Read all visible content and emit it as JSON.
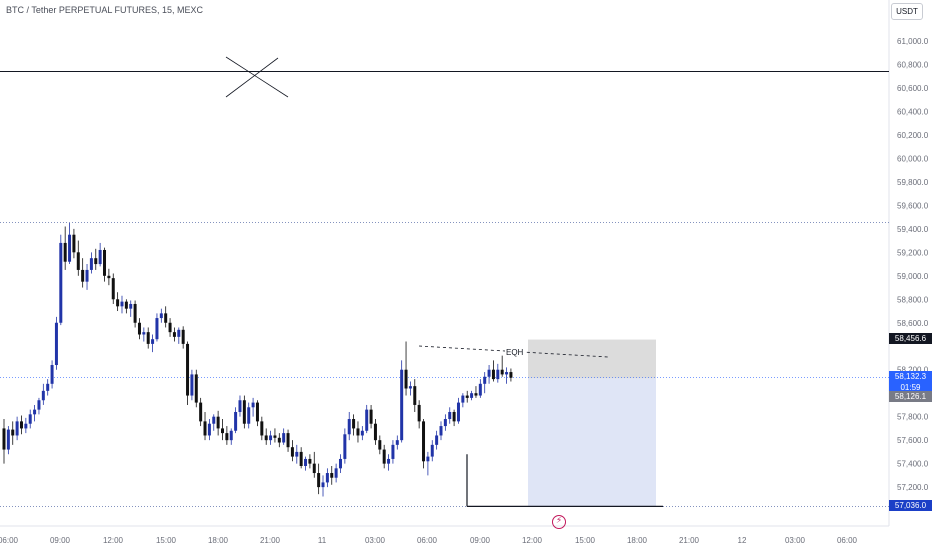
{
  "symbol": {
    "title": "BTC / Tether PERPETUAL FUTURES, 15, MEXC"
  },
  "currency": {
    "label": "USDT"
  },
  "y_axis": {
    "ticks": [
      "61,000.0",
      "60,800.0",
      "60,600.0",
      "60,400.0",
      "60,200.0",
      "60,000.0",
      "59,800.0",
      "59,600.0",
      "59,400.0",
      "59,200.0",
      "59,000.0",
      "58,800.0",
      "58,600.0",
      "58,200.0",
      "57,800.0",
      "57,600.0",
      "57,400.0",
      "57,200.0"
    ]
  },
  "x_axis": {
    "ticks": [
      "06:00",
      "09:00",
      "12:00",
      "15:00",
      "18:00",
      "21:00",
      "11",
      "03:00",
      "06:00",
      "09:00",
      "12:00",
      "15:00",
      "18:00",
      "21:00",
      "12",
      "03:00",
      "06:00"
    ]
  },
  "price_tags": {
    "target": "58,456.6",
    "current": "58,132.3",
    "countdown": "01:59",
    "entry": "58,126.1",
    "stop": "57,036.0"
  },
  "annotations": {
    "eqh": "EQH"
  },
  "levels": {
    "horizontal_top": 60740,
    "dotted_high": 59455,
    "bottom_line": 57036,
    "current": 58132.3
  },
  "position": {
    "entry": 58126.1,
    "target": 58456.6,
    "stop": 57036.0
  },
  "colors": {
    "up": "#2134a8",
    "down": "#111111",
    "target_zone": "#dcdcdc",
    "stop_zone": "#dfe5f6",
    "accent": "#2962ff",
    "flash": "#c2185b"
  },
  "icons": {
    "replay": "flash-icon"
  },
  "chart_data": {
    "type": "candlestick",
    "interval": "15",
    "ylim": [
      57036.0,
      61000.0
    ],
    "candles": [
      {
        "o": 57700,
        "h": 57780,
        "l": 57400,
        "c": 57520
      },
      {
        "o": 57520,
        "h": 57720,
        "l": 57480,
        "c": 57690
      },
      {
        "o": 57690,
        "h": 57760,
        "l": 57560,
        "c": 57640
      },
      {
        "o": 57640,
        "h": 57800,
        "l": 57600,
        "c": 57760
      },
      {
        "o": 57760,
        "h": 57810,
        "l": 57650,
        "c": 57700
      },
      {
        "o": 57700,
        "h": 57790,
        "l": 57660,
        "c": 57740
      },
      {
        "o": 57740,
        "h": 57860,
        "l": 57700,
        "c": 57820
      },
      {
        "o": 57820,
        "h": 57900,
        "l": 57760,
        "c": 57860
      },
      {
        "o": 57860,
        "h": 57960,
        "l": 57820,
        "c": 57940
      },
      {
        "o": 57940,
        "h": 58080,
        "l": 57900,
        "c": 58020
      },
      {
        "o": 58020,
        "h": 58120,
        "l": 57980,
        "c": 58080
      },
      {
        "o": 58080,
        "h": 58280,
        "l": 58040,
        "c": 58240
      },
      {
        "o": 58240,
        "h": 58650,
        "l": 58200,
        "c": 58600
      },
      {
        "o": 58600,
        "h": 59350,
        "l": 58580,
        "c": 59280
      },
      {
        "o": 59280,
        "h": 59420,
        "l": 59050,
        "c": 59120
      },
      {
        "o": 59120,
        "h": 59450,
        "l": 59100,
        "c": 59350
      },
      {
        "o": 59350,
        "h": 59400,
        "l": 59150,
        "c": 59200
      },
      {
        "o": 59200,
        "h": 59300,
        "l": 59000,
        "c": 59050
      },
      {
        "o": 59050,
        "h": 59150,
        "l": 58900,
        "c": 58950
      },
      {
        "o": 58950,
        "h": 59100,
        "l": 58880,
        "c": 59050
      },
      {
        "o": 59050,
        "h": 59200,
        "l": 59020,
        "c": 59150
      },
      {
        "o": 59150,
        "h": 59230,
        "l": 59050,
        "c": 59100
      },
      {
        "o": 59100,
        "h": 59280,
        "l": 59080,
        "c": 59220
      },
      {
        "o": 59220,
        "h": 59240,
        "l": 58950,
        "c": 59000
      },
      {
        "o": 59000,
        "h": 59060,
        "l": 58920,
        "c": 58980
      },
      {
        "o": 58980,
        "h": 59020,
        "l": 58760,
        "c": 58800
      },
      {
        "o": 58800,
        "h": 58860,
        "l": 58700,
        "c": 58740
      },
      {
        "o": 58740,
        "h": 58830,
        "l": 58680,
        "c": 58780
      },
      {
        "o": 58780,
        "h": 58800,
        "l": 58680,
        "c": 58720
      },
      {
        "o": 58720,
        "h": 58790,
        "l": 58650,
        "c": 58760
      },
      {
        "o": 58760,
        "h": 58790,
        "l": 58560,
        "c": 58600
      },
      {
        "o": 58600,
        "h": 58640,
        "l": 58460,
        "c": 58500
      },
      {
        "o": 58500,
        "h": 58560,
        "l": 58440,
        "c": 58520
      },
      {
        "o": 58520,
        "h": 58560,
        "l": 58380,
        "c": 58420
      },
      {
        "o": 58420,
        "h": 58500,
        "l": 58350,
        "c": 58460
      },
      {
        "o": 58460,
        "h": 58680,
        "l": 58440,
        "c": 58640
      },
      {
        "o": 58640,
        "h": 58720,
        "l": 58600,
        "c": 58680
      },
      {
        "o": 58680,
        "h": 58740,
        "l": 58560,
        "c": 58600
      },
      {
        "o": 58600,
        "h": 58640,
        "l": 58480,
        "c": 58520
      },
      {
        "o": 58520,
        "h": 58560,
        "l": 58440,
        "c": 58480
      },
      {
        "o": 58480,
        "h": 58560,
        "l": 58420,
        "c": 58540
      },
      {
        "o": 58540,
        "h": 58570,
        "l": 58380,
        "c": 58420
      },
      {
        "o": 58420,
        "h": 58440,
        "l": 57900,
        "c": 57980
      },
      {
        "o": 57980,
        "h": 58200,
        "l": 57940,
        "c": 58160
      },
      {
        "o": 58160,
        "h": 58200,
        "l": 57880,
        "c": 57920
      },
      {
        "o": 57920,
        "h": 57960,
        "l": 57720,
        "c": 57760
      },
      {
        "o": 57760,
        "h": 57840,
        "l": 57600,
        "c": 57640
      },
      {
        "o": 57640,
        "h": 57780,
        "l": 57600,
        "c": 57740
      },
      {
        "o": 57740,
        "h": 57820,
        "l": 57680,
        "c": 57800
      },
      {
        "o": 57800,
        "h": 57850,
        "l": 57640,
        "c": 57700
      },
      {
        "o": 57700,
        "h": 57780,
        "l": 57600,
        "c": 57660
      },
      {
        "o": 57660,
        "h": 57720,
        "l": 57560,
        "c": 57600
      },
      {
        "o": 57600,
        "h": 57700,
        "l": 57560,
        "c": 57680
      },
      {
        "o": 57680,
        "h": 57880,
        "l": 57660,
        "c": 57840
      },
      {
        "o": 57840,
        "h": 57980,
        "l": 57800,
        "c": 57940
      },
      {
        "o": 57940,
        "h": 57980,
        "l": 57700,
        "c": 57740
      },
      {
        "o": 57740,
        "h": 57920,
        "l": 57700,
        "c": 57880
      },
      {
        "o": 57880,
        "h": 57960,
        "l": 57800,
        "c": 57920
      },
      {
        "o": 57920,
        "h": 57940,
        "l": 57720,
        "c": 57760
      },
      {
        "o": 57760,
        "h": 57800,
        "l": 57600,
        "c": 57640
      },
      {
        "o": 57640,
        "h": 57700,
        "l": 57560,
        "c": 57600
      },
      {
        "o": 57600,
        "h": 57680,
        "l": 57560,
        "c": 57640
      },
      {
        "o": 57640,
        "h": 57700,
        "l": 57580,
        "c": 57620
      },
      {
        "o": 57620,
        "h": 57660,
        "l": 57540,
        "c": 57580
      },
      {
        "o": 57580,
        "h": 57700,
        "l": 57560,
        "c": 57660
      },
      {
        "o": 57660,
        "h": 57690,
        "l": 57500,
        "c": 57540
      },
      {
        "o": 57540,
        "h": 57600,
        "l": 57420,
        "c": 57460
      },
      {
        "o": 57460,
        "h": 57560,
        "l": 57400,
        "c": 57500
      },
      {
        "o": 57500,
        "h": 57540,
        "l": 57360,
        "c": 57380
      },
      {
        "o": 57380,
        "h": 57460,
        "l": 57340,
        "c": 57440
      },
      {
        "o": 57440,
        "h": 57480,
        "l": 57360,
        "c": 57400
      },
      {
        "o": 57400,
        "h": 57500,
        "l": 57280,
        "c": 57320
      },
      {
        "o": 57320,
        "h": 57400,
        "l": 57140,
        "c": 57200
      },
      {
        "o": 57200,
        "h": 57300,
        "l": 57120,
        "c": 57240
      },
      {
        "o": 57240,
        "h": 57360,
        "l": 57200,
        "c": 57320
      },
      {
        "o": 57320,
        "h": 57380,
        "l": 57220,
        "c": 57280
      },
      {
        "o": 57280,
        "h": 57400,
        "l": 57240,
        "c": 57360
      },
      {
        "o": 57360,
        "h": 57480,
        "l": 57320,
        "c": 57440
      },
      {
        "o": 57440,
        "h": 57700,
        "l": 57400,
        "c": 57650
      },
      {
        "o": 57650,
        "h": 57840,
        "l": 57600,
        "c": 57780
      },
      {
        "o": 57780,
        "h": 57820,
        "l": 57640,
        "c": 57700
      },
      {
        "o": 57700,
        "h": 57760,
        "l": 57580,
        "c": 57640
      },
      {
        "o": 57640,
        "h": 57720,
        "l": 57600,
        "c": 57680
      },
      {
        "o": 57680,
        "h": 57900,
        "l": 57660,
        "c": 57860
      },
      {
        "o": 57860,
        "h": 57900,
        "l": 57700,
        "c": 57740
      },
      {
        "o": 57740,
        "h": 57780,
        "l": 57560,
        "c": 57600
      },
      {
        "o": 57600,
        "h": 57640,
        "l": 57480,
        "c": 57520
      },
      {
        "o": 57520,
        "h": 57560,
        "l": 57360,
        "c": 57400
      },
      {
        "o": 57400,
        "h": 57480,
        "l": 57340,
        "c": 57440
      },
      {
        "o": 57440,
        "h": 57600,
        "l": 57400,
        "c": 57560
      },
      {
        "o": 57560,
        "h": 57640,
        "l": 57520,
        "c": 57600
      },
      {
        "o": 57600,
        "h": 58280,
        "l": 57580,
        "c": 58200
      },
      {
        "o": 58200,
        "h": 58440,
        "l": 57980,
        "c": 58040
      },
      {
        "o": 58040,
        "h": 58100,
        "l": 57980,
        "c": 58060
      },
      {
        "o": 58060,
        "h": 58120,
        "l": 57840,
        "c": 57900
      },
      {
        "o": 57900,
        "h": 57940,
        "l": 57700,
        "c": 57760
      },
      {
        "o": 57760,
        "h": 57780,
        "l": 57360,
        "c": 57420
      },
      {
        "o": 57420,
        "h": 57500,
        "l": 57300,
        "c": 57460
      },
      {
        "o": 57460,
        "h": 57600,
        "l": 57420,
        "c": 57560
      },
      {
        "o": 57560,
        "h": 57680,
        "l": 57520,
        "c": 57640
      },
      {
        "o": 57640,
        "h": 57760,
        "l": 57600,
        "c": 57720
      },
      {
        "o": 57720,
        "h": 57820,
        "l": 57680,
        "c": 57780
      },
      {
        "o": 57780,
        "h": 57880,
        "l": 57740,
        "c": 57840
      },
      {
        "o": 57840,
        "h": 57860,
        "l": 57720,
        "c": 57760
      },
      {
        "o": 57760,
        "h": 57960,
        "l": 57740,
        "c": 57920
      },
      {
        "o": 57920,
        "h": 58000,
        "l": 57880,
        "c": 57980
      },
      {
        "o": 57980,
        "h": 58020,
        "l": 57920,
        "c": 57960
      },
      {
        "o": 57960,
        "h": 58020,
        "l": 57940,
        "c": 58000
      },
      {
        "o": 58000,
        "h": 58060,
        "l": 57960,
        "c": 57980
      },
      {
        "o": 57980,
        "h": 58120,
        "l": 57960,
        "c": 58080
      },
      {
        "o": 58080,
        "h": 58180,
        "l": 58000,
        "c": 58140
      },
      {
        "o": 58140,
        "h": 58240,
        "l": 58080,
        "c": 58200
      },
      {
        "o": 58200,
        "h": 58280,
        "l": 58100,
        "c": 58120
      },
      {
        "o": 58120,
        "h": 58250,
        "l": 58090,
        "c": 58200
      },
      {
        "o": 58200,
        "h": 58320,
        "l": 58140,
        "c": 58160
      },
      {
        "o": 58160,
        "h": 58220,
        "l": 58080,
        "c": 58180
      },
      {
        "o": 58180,
        "h": 58210,
        "l": 58100,
        "c": 58132
      }
    ]
  }
}
